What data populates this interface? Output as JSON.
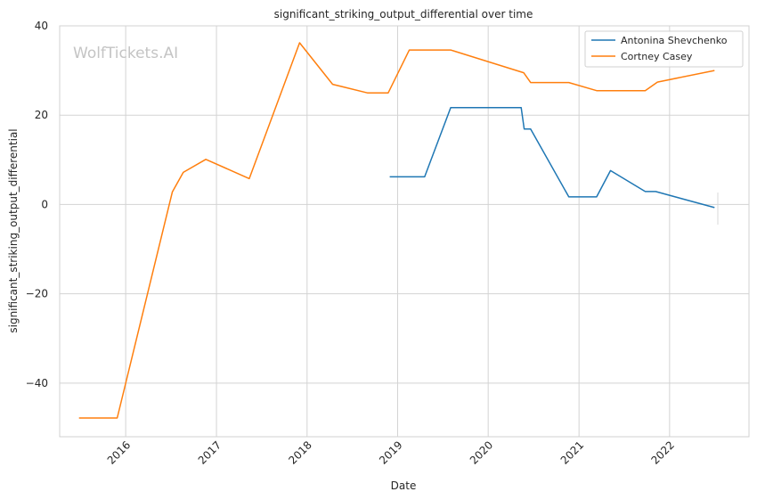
{
  "chart_data": {
    "type": "line",
    "title": "significant_striking_output_differential over time",
    "xlabel": "Date",
    "ylabel": "significant_striking_output_differential",
    "watermark": "WolfTickets.AI",
    "xlim": [
      "2015-04-10",
      "2022-11-17"
    ],
    "ylim": [
      -52,
      40
    ],
    "x_ticks": [
      "2016-01-01",
      "2017-01-01",
      "2018-01-01",
      "2019-01-01",
      "2020-01-01",
      "2021-01-01",
      "2022-01-01"
    ],
    "x_tick_labels": [
      "2016",
      "2017",
      "2018",
      "2019",
      "2020",
      "2021",
      "2022"
    ],
    "y_ticks": [
      -40,
      -20,
      0,
      20,
      40
    ],
    "y_tick_labels": [
      "−40",
      "−20",
      "0",
      "20",
      "40"
    ],
    "grid": true,
    "legend_position": "top-right",
    "series": [
      {
        "name": "Antonina Shevchenko",
        "color": "#1f77b4",
        "points": [
          [
            "2018-11-30",
            6.2
          ],
          [
            "2019-04-20",
            6.2
          ],
          [
            "2019-08-03",
            21.7
          ],
          [
            "2020-05-13",
            21.7
          ],
          [
            "2020-05-25",
            16.9
          ],
          [
            "2020-06-20",
            16.9
          ],
          [
            "2020-11-21",
            1.7
          ],
          [
            "2021-03-13",
            1.7
          ],
          [
            "2021-05-08",
            7.6
          ],
          [
            "2021-09-25",
            2.9
          ],
          [
            "2021-11-06",
            2.9
          ],
          [
            "2022-07-01",
            -0.7
          ]
        ]
      },
      {
        "name": "Cortney Casey",
        "color": "#ff7f0e",
        "points": [
          [
            "2015-06-27",
            -47.8
          ],
          [
            "2015-11-28",
            -47.8
          ],
          [
            "2016-07-07",
            2.8
          ],
          [
            "2016-08-20",
            7.2
          ],
          [
            "2016-11-19",
            10.1
          ],
          [
            "2017-05-13",
            5.8
          ],
          [
            "2017-12-02",
            36.2
          ],
          [
            "2018-04-14",
            26.9
          ],
          [
            "2018-09-01",
            25.0
          ],
          [
            "2018-11-24",
            25.0
          ],
          [
            "2019-02-17",
            34.6
          ],
          [
            "2019-08-03",
            34.6
          ],
          [
            "2020-05-23",
            29.5
          ],
          [
            "2020-06-20",
            27.3
          ],
          [
            "2020-11-21",
            27.3
          ],
          [
            "2021-03-13",
            25.5
          ],
          [
            "2021-09-25",
            25.5
          ],
          [
            "2021-11-13",
            27.4
          ],
          [
            "2022-07-01",
            30.0
          ]
        ]
      }
    ]
  }
}
